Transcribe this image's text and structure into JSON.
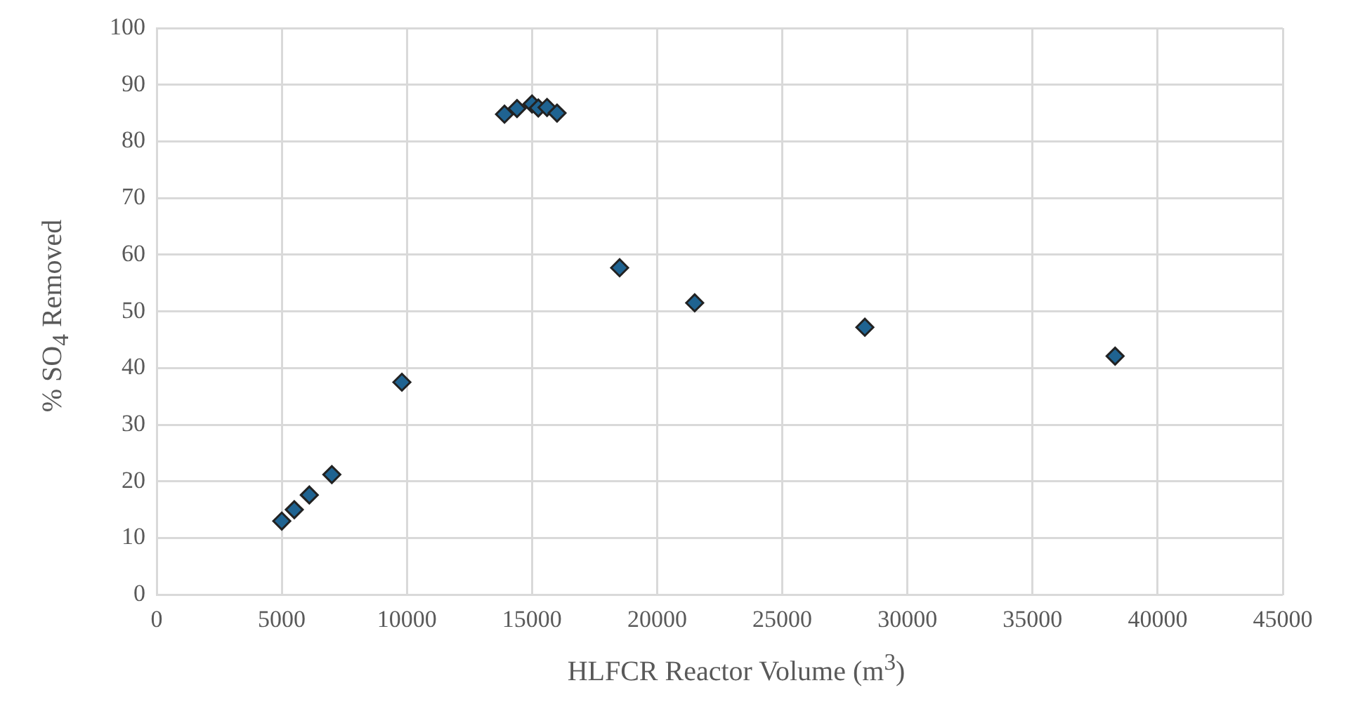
{
  "chart_data": {
    "type": "scatter",
    "xlabel": "HLFCR Reactor Volume (m$^{3}$)",
    "ylabel": "% SO$_{4}$ Removed",
    "series": [
      {
        "color": "#1f6391",
        "x": [
          5000,
          5500,
          6100,
          7000,
          9800,
          13900,
          14400,
          15000,
          15250,
          15600,
          16000,
          18500,
          21500,
          28300,
          38300
        ],
        "values": [
          13,
          15,
          17.6,
          21.2,
          37.5,
          84.8,
          85.8,
          86.6,
          85.9,
          86,
          85,
          57.7,
          51.5,
          47.2,
          42.1
        ]
      }
    ],
    "xlim": [
      0,
      45000
    ],
    "xticks": [
      0,
      5000,
      10000,
      15000,
      20000,
      25000,
      30000,
      35000,
      40000,
      45000
    ],
    "ylim": [
      0,
      100
    ],
    "yticks": [
      0,
      10,
      20,
      30,
      40,
      50,
      60,
      70,
      80,
      90,
      100
    ],
    "grid": true,
    "marker": "diamond"
  }
}
